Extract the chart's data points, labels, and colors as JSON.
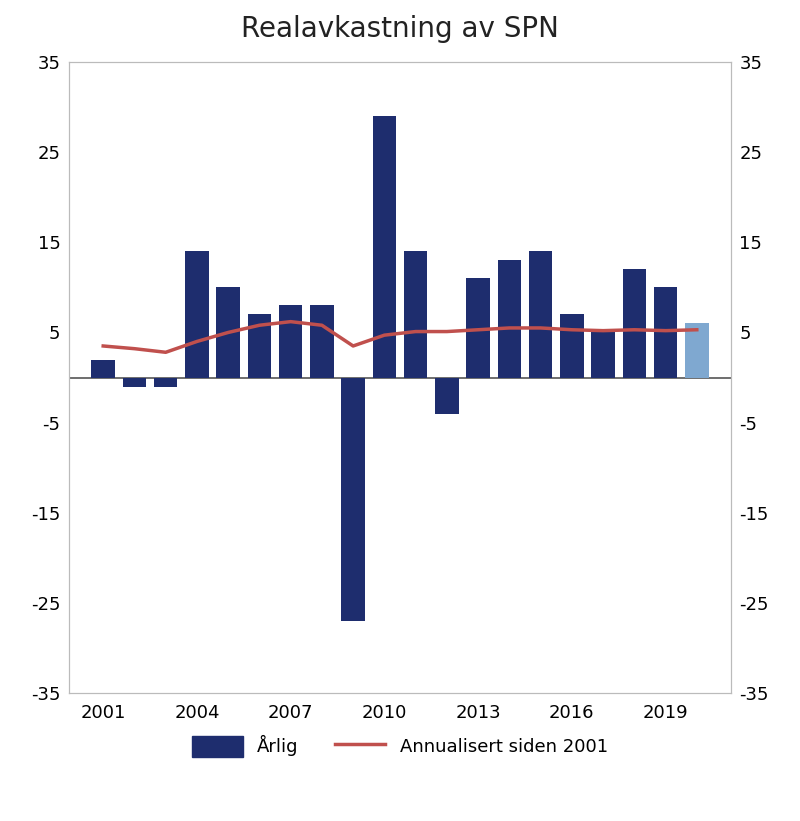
{
  "title": "Realavkastning av SPN",
  "years": [
    2001,
    2002,
    2003,
    2004,
    2005,
    2006,
    2007,
    2008,
    2009,
    2010,
    2011,
    2012,
    2013,
    2014,
    2015,
    2016,
    2017,
    2018,
    2019,
    2020
  ],
  "bar_values": [
    2.0,
    -1.0,
    -1.0,
    14.0,
    10.0,
    7.0,
    8.0,
    8.0,
    -27.0,
    29.0,
    14.0,
    -4.0,
    11.0,
    13.0,
    14.0,
    7.0,
    5.0,
    12.0,
    10.0,
    6.0
  ],
  "bar_colors": [
    "#1e2d6e",
    "#1e2d6e",
    "#1e2d6e",
    "#1e2d6e",
    "#1e2d6e",
    "#1e2d6e",
    "#1e2d6e",
    "#1e2d6e",
    "#1e2d6e",
    "#1e2d6e",
    "#1e2d6e",
    "#1e2d6e",
    "#1e2d6e",
    "#1e2d6e",
    "#1e2d6e",
    "#1e2d6e",
    "#1e2d6e",
    "#1e2d6e",
    "#1e2d6e",
    "#7fa8d0"
  ],
  "line_values": [
    3.5,
    3.2,
    2.8,
    4.0,
    5.0,
    5.8,
    6.2,
    5.8,
    3.5,
    4.7,
    5.1,
    5.1,
    5.3,
    5.5,
    5.5,
    5.3,
    5.2,
    5.3,
    5.2,
    5.3
  ],
  "line_color": "#c0504d",
  "ylim": [
    -35,
    35
  ],
  "yticks": [
    -35,
    -25,
    -15,
    -5,
    5,
    15,
    25,
    35
  ],
  "xtick_years": [
    2001,
    2004,
    2007,
    2010,
    2013,
    2016,
    2019
  ],
  "legend_bar_label": "Årlig",
  "legend_line_label": "Annualisert siden 2001",
  "bar_width": 0.75,
  "background_color": "#ffffff",
  "zero_line_color": "#555555",
  "figsize": [
    8.0,
    8.21
  ],
  "dpi": 100
}
